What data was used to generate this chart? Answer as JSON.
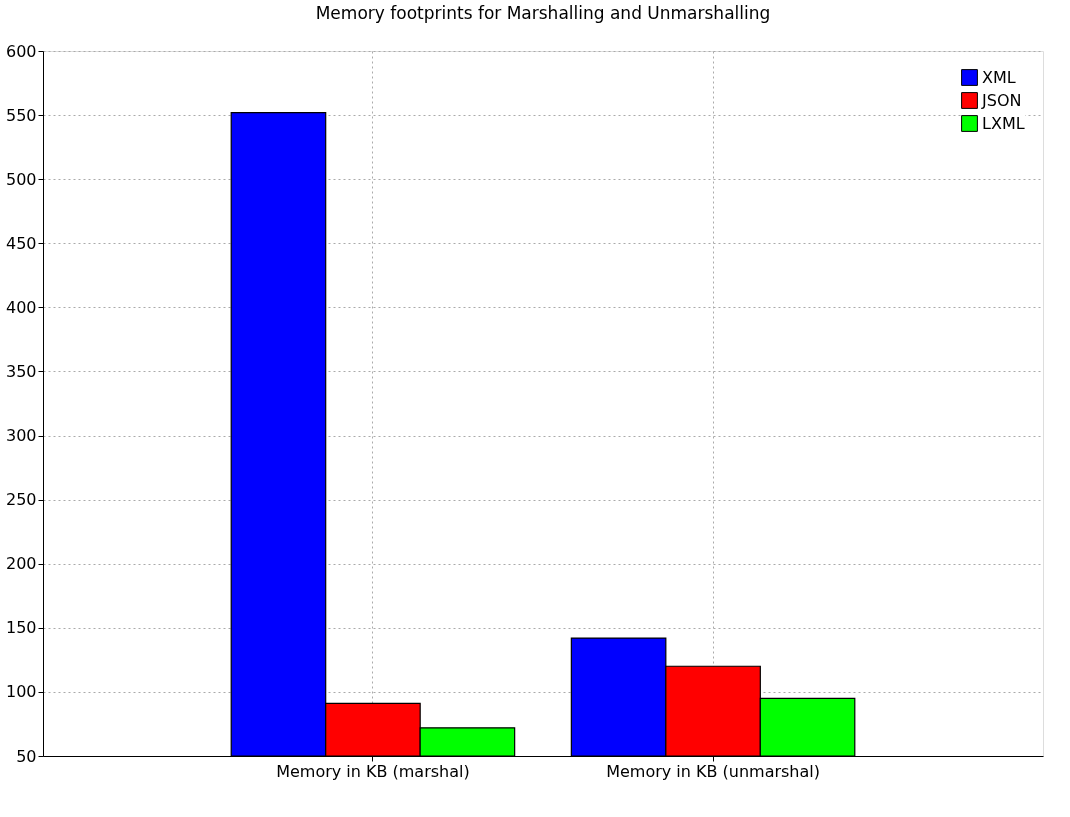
{
  "chart_data": {
    "type": "bar",
    "title": "Memory footprints for Marshalling and Unmarshalling",
    "categories": [
      "Memory in KB (marshal)",
      "Memory in KB (unmarshal)"
    ],
    "series": [
      {
        "name": "XML",
        "color": "#0000ff",
        "values": [
          552,
          142
        ]
      },
      {
        "name": "JSON",
        "color": "#ff0000",
        "values": [
          91,
          120
        ]
      },
      {
        "name": "LXML",
        "color": "#00ff00",
        "values": [
          72,
          95
        ]
      }
    ],
    "ylim": [
      50,
      600
    ],
    "yticks": [
      50,
      100,
      150,
      200,
      250,
      300,
      350,
      400,
      450,
      500,
      550,
      600
    ],
    "grid": true,
    "legend": "top right"
  }
}
